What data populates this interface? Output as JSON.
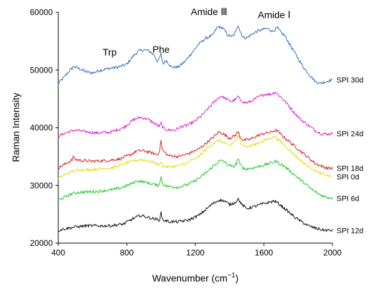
{
  "chart_data": {
    "type": "line",
    "xlabel": "Wavenumber (cm",
    "xlabel_sup": "−1",
    "xlabel_tail": ")",
    "ylabel": "Raman Intensity",
    "xlim": [
      400,
      2000
    ],
    "ylim": [
      20000,
      60000
    ],
    "x_ticks": [
      "400",
      "800",
      "1200",
      "1600",
      "2000"
    ],
    "y_ticks": [
      "20000",
      "30000",
      "40000",
      "50000",
      "60000"
    ],
    "grid": false,
    "annotations": [
      {
        "text": "Trp",
        "x": 700,
        "y": 52500
      },
      {
        "text": "Phe",
        "x": 1000,
        "y": 53000
      },
      {
        "text": "Amide Ⅲ",
        "x": 1280,
        "y": 59500
      },
      {
        "text": "Amide Ⅰ",
        "x": 1660,
        "y": 59000
      }
    ],
    "series": [
      {
        "name": "SPI 30d",
        "color": "#2e6fbd",
        "x": [
          400,
          430,
          460,
          490,
          520,
          560,
          600,
          650,
          700,
          750,
          800,
          840,
          870,
          900,
          930,
          960,
          980,
          990,
          1000,
          1010,
          1030,
          1060,
          1100,
          1140,
          1180,
          1220,
          1260,
          1300,
          1330,
          1360,
          1390,
          1420,
          1440,
          1450,
          1460,
          1480,
          1500,
          1530,
          1560,
          1590,
          1620,
          1650,
          1680,
          1700,
          1720,
          1750,
          1780,
          1800,
          1830,
          1860,
          1900,
          1930,
          1960,
          2000
        ],
        "values": [
          47700,
          48600,
          49700,
          50600,
          50300,
          49700,
          49500,
          50000,
          50300,
          50500,
          51000,
          52500,
          53300,
          53500,
          53300,
          52600,
          51400,
          52000,
          52800,
          51000,
          51700,
          50500,
          50500,
          51500,
          53000,
          54500,
          55500,
          56000,
          57500,
          57300,
          56000,
          55800,
          57000,
          58000,
          56800,
          55600,
          55600,
          56200,
          56700,
          57000,
          57200,
          56700,
          57300,
          56500,
          56000,
          54500,
          53000,
          52000,
          50500,
          49400,
          48000,
          47700,
          48000,
          48300
        ]
      },
      {
        "name": "SPI 24d",
        "color": "#e020c8",
        "x": [
          400,
          450,
          500,
          560,
          620,
          700,
          780,
          840,
          880,
          920,
          960,
          990,
          1000,
          1010,
          1040,
          1080,
          1120,
          1160,
          1200,
          1240,
          1280,
          1320,
          1350,
          1380,
          1410,
          1440,
          1450,
          1460,
          1490,
          1520,
          1560,
          1600,
          1640,
          1670,
          1680,
          1700,
          1740,
          1780,
          1820,
          1860,
          1900,
          1940,
          1970,
          2000
        ],
        "values": [
          38500,
          39200,
          39600,
          39300,
          39100,
          39200,
          40000,
          41400,
          41800,
          41500,
          40800,
          40200,
          40800,
          40000,
          39600,
          39600,
          40200,
          40500,
          41200,
          42200,
          43500,
          44800,
          45500,
          45000,
          44500,
          45000,
          45500,
          44800,
          44300,
          44500,
          45200,
          45800,
          45800,
          46200,
          45800,
          45300,
          44000,
          42500,
          41300,
          40400,
          39500,
          38900,
          38900,
          39000
        ]
      },
      {
        "name": "SPI 18d",
        "color": "#e02020",
        "x": [
          400,
          440,
          480,
          490,
          500,
          540,
          600,
          680,
          760,
          820,
          860,
          900,
          940,
          980,
          995,
          1000,
          1005,
          1040,
          1100,
          1160,
          1220,
          1270,
          1310,
          1340,
          1370,
          1400,
          1430,
          1450,
          1460,
          1480,
          1520,
          1560,
          1600,
          1640,
          1660,
          1680,
          1700,
          1740,
          1780,
          1820,
          1860,
          1900,
          1940,
          1970,
          2000
        ],
        "values": [
          33000,
          33700,
          34400,
          35000,
          34500,
          34300,
          34200,
          34300,
          34600,
          35300,
          36000,
          36000,
          35700,
          35300,
          36600,
          38000,
          36200,
          35200,
          35000,
          35500,
          36300,
          37500,
          38500,
          39300,
          38800,
          38200,
          38600,
          39300,
          38500,
          37800,
          38000,
          38600,
          39000,
          39200,
          39500,
          39500,
          38800,
          37800,
          36800,
          35800,
          34800,
          33800,
          33300,
          33000,
          33000
        ]
      },
      {
        "name": "SPI 0d",
        "color": "#e6e01a",
        "x": [
          400,
          440,
          480,
          520,
          580,
          650,
          720,
          790,
          850,
          880,
          920,
          960,
          990,
          1000,
          1010,
          1050,
          1100,
          1160,
          1220,
          1270,
          1310,
          1340,
          1370,
          1400,
          1430,
          1450,
          1470,
          1500,
          1540,
          1580,
          1620,
          1660,
          1690,
          1720,
          1760,
          1800,
          1840,
          1880,
          1920,
          1960,
          2000
        ],
        "values": [
          31200,
          31900,
          32400,
          32700,
          32700,
          32900,
          33100,
          33800,
          34300,
          34500,
          34300,
          34000,
          33500,
          34200,
          33300,
          33200,
          33400,
          34000,
          35000,
          36500,
          37400,
          37800,
          37300,
          36900,
          37600,
          38500,
          37200,
          36700,
          37000,
          37500,
          38000,
          38500,
          37800,
          37000,
          35800,
          34700,
          33700,
          32900,
          32200,
          31800,
          31500
        ]
      },
      {
        "name": "SPI 6d",
        "color": "#22c828",
        "x": [
          400,
          440,
          480,
          520,
          580,
          640,
          700,
          760,
          820,
          860,
          900,
          940,
          980,
          995,
          1000,
          1010,
          1040,
          1100,
          1160,
          1220,
          1270,
          1310,
          1340,
          1360,
          1390,
          1420,
          1440,
          1450,
          1460,
          1490,
          1530,
          1570,
          1610,
          1650,
          1670,
          1690,
          1720,
          1760,
          1800,
          1840,
          1880,
          1920,
          1960,
          2000
        ],
        "values": [
          27500,
          28000,
          28600,
          28800,
          28900,
          29000,
          29200,
          29500,
          30200,
          30800,
          30600,
          30300,
          30000,
          30600,
          31500,
          30200,
          29800,
          29700,
          30200,
          31200,
          32400,
          33500,
          34200,
          34300,
          33600,
          33200,
          33800,
          34800,
          33600,
          32800,
          33000,
          33300,
          33600,
          34000,
          34200,
          33800,
          33300,
          32300,
          31300,
          30300,
          29300,
          28500,
          28000,
          27800
        ]
      },
      {
        "name": "SPI 12d",
        "color": "#111111",
        "x": [
          400,
          440,
          500,
          560,
          620,
          700,
          780,
          840,
          880,
          920,
          960,
          990,
          1000,
          1010,
          1050,
          1100,
          1160,
          1220,
          1260,
          1300,
          1340,
          1370,
          1400,
          1430,
          1450,
          1470,
          1500,
          1540,
          1580,
          1620,
          1660,
          1680,
          1700,
          1740,
          1780,
          1820,
          1860,
          1900,
          1940,
          1970,
          2000
        ],
        "values": [
          22200,
          22500,
          22800,
          23000,
          23000,
          23000,
          23300,
          24300,
          24800,
          24500,
          24200,
          24000,
          25200,
          24000,
          23700,
          23700,
          24000,
          24800,
          25800,
          26800,
          27500,
          27300,
          26700,
          27000,
          27700,
          26700,
          26000,
          26300,
          26700,
          27000,
          27300,
          27000,
          26500,
          25500,
          24500,
          23700,
          23000,
          22600,
          22300,
          22200,
          22200
        ]
      }
    ]
  }
}
